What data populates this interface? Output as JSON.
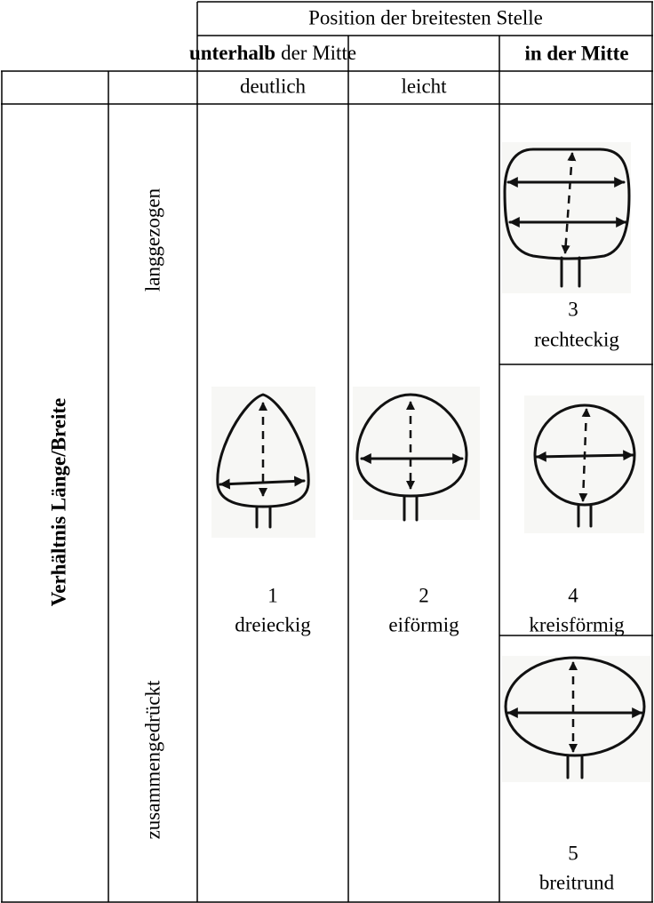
{
  "header": {
    "title": "Position der breitesten Stelle",
    "groups": [
      {
        "bold": "unterhalb",
        "text": "der Mitte"
      },
      {
        "bold": "in der Mitte"
      }
    ],
    "subgroups": [
      "deutlich",
      "leicht"
    ]
  },
  "rows": {
    "title": "Verhältnis Länge/Breite",
    "labels": [
      "langgezogen",
      "zusammengedrückt"
    ]
  },
  "shapes": [
    {
      "number": "1",
      "name": "dreieckig"
    },
    {
      "number": "2",
      "name": "eiförmig"
    },
    {
      "number": "3",
      "name": "rechteckig"
    },
    {
      "number": "4",
      "name": "kreisförmig"
    },
    {
      "number": "5",
      "name": "breitrund"
    }
  ]
}
